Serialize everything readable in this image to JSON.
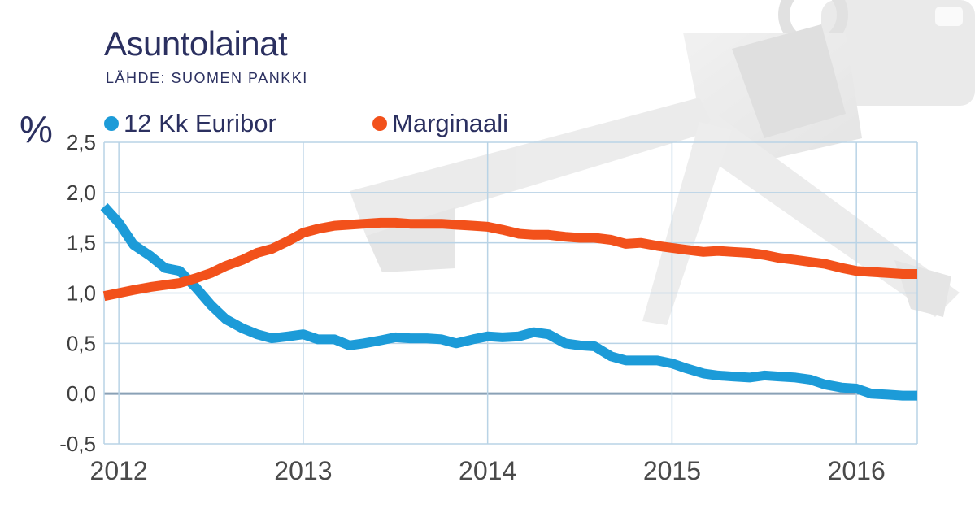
{
  "header": {
    "title": "Asuntolainat",
    "source": "LÄHDE: SUOMEN PANKKI"
  },
  "colors": {
    "euribor": "#1c9bd8",
    "marginaali": "#f2511b",
    "text": "#2b3060",
    "grid": "#b9d3e6",
    "zero_line": "#8aa1b6"
  },
  "chart_data": {
    "type": "line",
    "unit_label": "%",
    "x_start": 2011.92,
    "x_end": 2016.33,
    "ylim": [
      -0.5,
      2.5
    ],
    "y_ticks": [
      -0.5,
      0.0,
      0.5,
      1.0,
      1.5,
      2.0,
      2.5
    ],
    "y_tick_labels": [
      "-0,5",
      "0,0",
      "0,5",
      "1,0",
      "1,5",
      "2,0",
      "2,5"
    ],
    "x_ticks": [
      2012,
      2013,
      2014,
      2015,
      2016
    ],
    "x_tick_labels": [
      "2012",
      "2013",
      "2014",
      "2015",
      "2016"
    ],
    "grid": true,
    "legend_position": "top",
    "series": [
      {
        "name": "12 Kk Euribor",
        "x": [
          2011.92,
          2012.0,
          2012.08,
          2012.17,
          2012.25,
          2012.33,
          2012.42,
          2012.5,
          2012.58,
          2012.67,
          2012.75,
          2012.83,
          2012.92,
          2013.0,
          2013.08,
          2013.17,
          2013.25,
          2013.33,
          2013.42,
          2013.5,
          2013.58,
          2013.67,
          2013.75,
          2013.83,
          2013.92,
          2014.0,
          2014.08,
          2014.17,
          2014.25,
          2014.33,
          2014.42,
          2014.5,
          2014.58,
          2014.67,
          2014.75,
          2014.83,
          2014.92,
          2015.0,
          2015.08,
          2015.17,
          2015.25,
          2015.33,
          2015.42,
          2015.5,
          2015.58,
          2015.67,
          2015.75,
          2015.83,
          2015.92,
          2016.0,
          2016.08,
          2016.17,
          2016.25,
          2016.33
        ],
        "values": [
          1.86,
          1.7,
          1.48,
          1.37,
          1.25,
          1.22,
          1.05,
          0.88,
          0.74,
          0.65,
          0.59,
          0.55,
          0.57,
          0.59,
          0.54,
          0.54,
          0.48,
          0.5,
          0.53,
          0.56,
          0.55,
          0.55,
          0.54,
          0.5,
          0.54,
          0.57,
          0.56,
          0.57,
          0.61,
          0.59,
          0.5,
          0.48,
          0.47,
          0.37,
          0.33,
          0.33,
          0.33,
          0.3,
          0.25,
          0.2,
          0.18,
          0.17,
          0.16,
          0.18,
          0.17,
          0.16,
          0.14,
          0.09,
          0.06,
          0.05,
          0.0,
          -0.01,
          -0.02,
          -0.02
        ]
      },
      {
        "name": "Marginaali",
        "x": [
          2011.92,
          2012.0,
          2012.08,
          2012.17,
          2012.25,
          2012.33,
          2012.42,
          2012.5,
          2012.58,
          2012.67,
          2012.75,
          2012.83,
          2012.92,
          2013.0,
          2013.08,
          2013.17,
          2013.25,
          2013.33,
          2013.42,
          2013.5,
          2013.58,
          2013.67,
          2013.75,
          2013.83,
          2013.92,
          2014.0,
          2014.08,
          2014.17,
          2014.25,
          2014.33,
          2014.42,
          2014.5,
          2014.58,
          2014.67,
          2014.75,
          2014.83,
          2014.92,
          2015.0,
          2015.08,
          2015.17,
          2015.25,
          2015.33,
          2015.42,
          2015.5,
          2015.58,
          2015.67,
          2015.75,
          2015.83,
          2015.92,
          2016.0,
          2016.08,
          2016.17,
          2016.25,
          2016.33
        ],
        "values": [
          0.97,
          1.0,
          1.03,
          1.06,
          1.08,
          1.1,
          1.15,
          1.2,
          1.27,
          1.33,
          1.4,
          1.44,
          1.52,
          1.6,
          1.64,
          1.67,
          1.68,
          1.69,
          1.7,
          1.7,
          1.69,
          1.69,
          1.69,
          1.68,
          1.67,
          1.66,
          1.63,
          1.59,
          1.58,
          1.58,
          1.56,
          1.55,
          1.55,
          1.53,
          1.49,
          1.5,
          1.47,
          1.45,
          1.43,
          1.41,
          1.42,
          1.41,
          1.4,
          1.38,
          1.35,
          1.33,
          1.31,
          1.29,
          1.25,
          1.22,
          1.21,
          1.2,
          1.19,
          1.19
        ]
      }
    ]
  }
}
